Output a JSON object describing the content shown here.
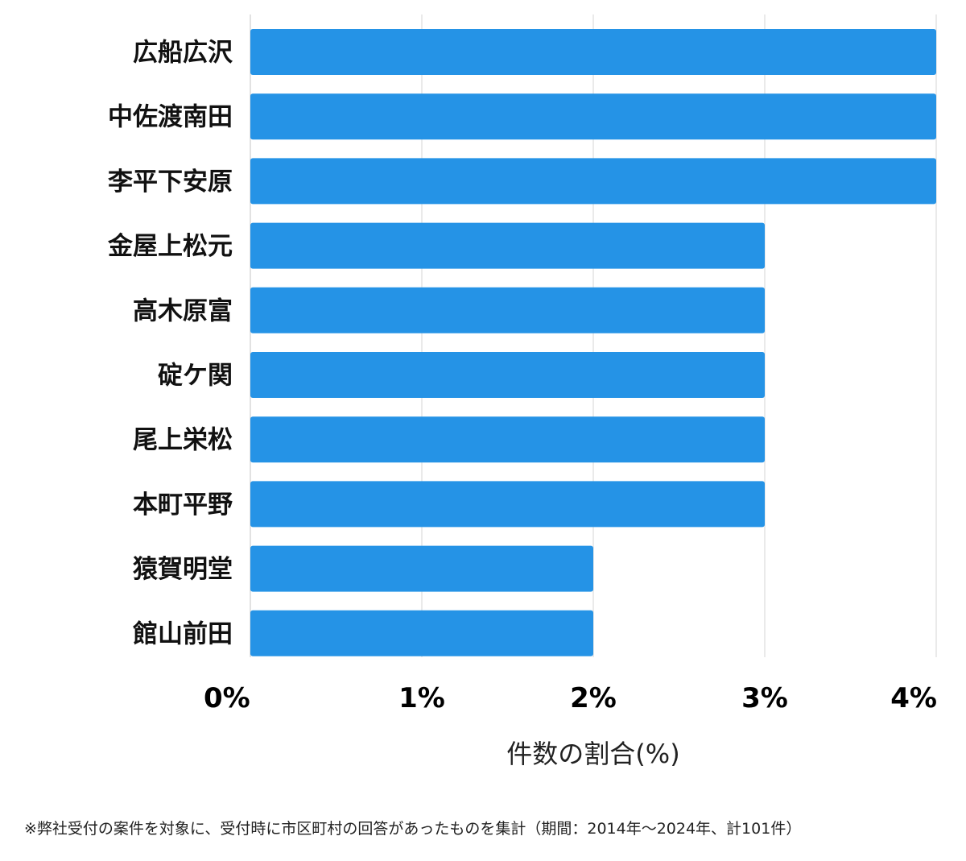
{
  "chart_data": {
    "type": "bar",
    "orientation": "horizontal",
    "categories": [
      "広船広沢",
      "中佐渡南田",
      "李平下安原",
      "金屋上松元",
      "高木原富",
      "碇ケ関",
      "尾上栄松",
      "本町平野",
      "猿賀明堂",
      "館山前田"
    ],
    "values": [
      4,
      4,
      4,
      3,
      3,
      3,
      3,
      3,
      2,
      2
    ],
    "xticks": [
      "0%",
      "1%",
      "2%",
      "3%",
      "4%"
    ],
    "xlim": [
      0,
      4
    ],
    "xlabel": "件数の割合(%)",
    "ylabel": "",
    "title": "",
    "grid": true,
    "bar_color": "#2593e6"
  },
  "footnote": "※弊社受付の案件を対象に、受付時に市区町村の回答があったものを集計（期間：2014年～2024年、計101件）"
}
